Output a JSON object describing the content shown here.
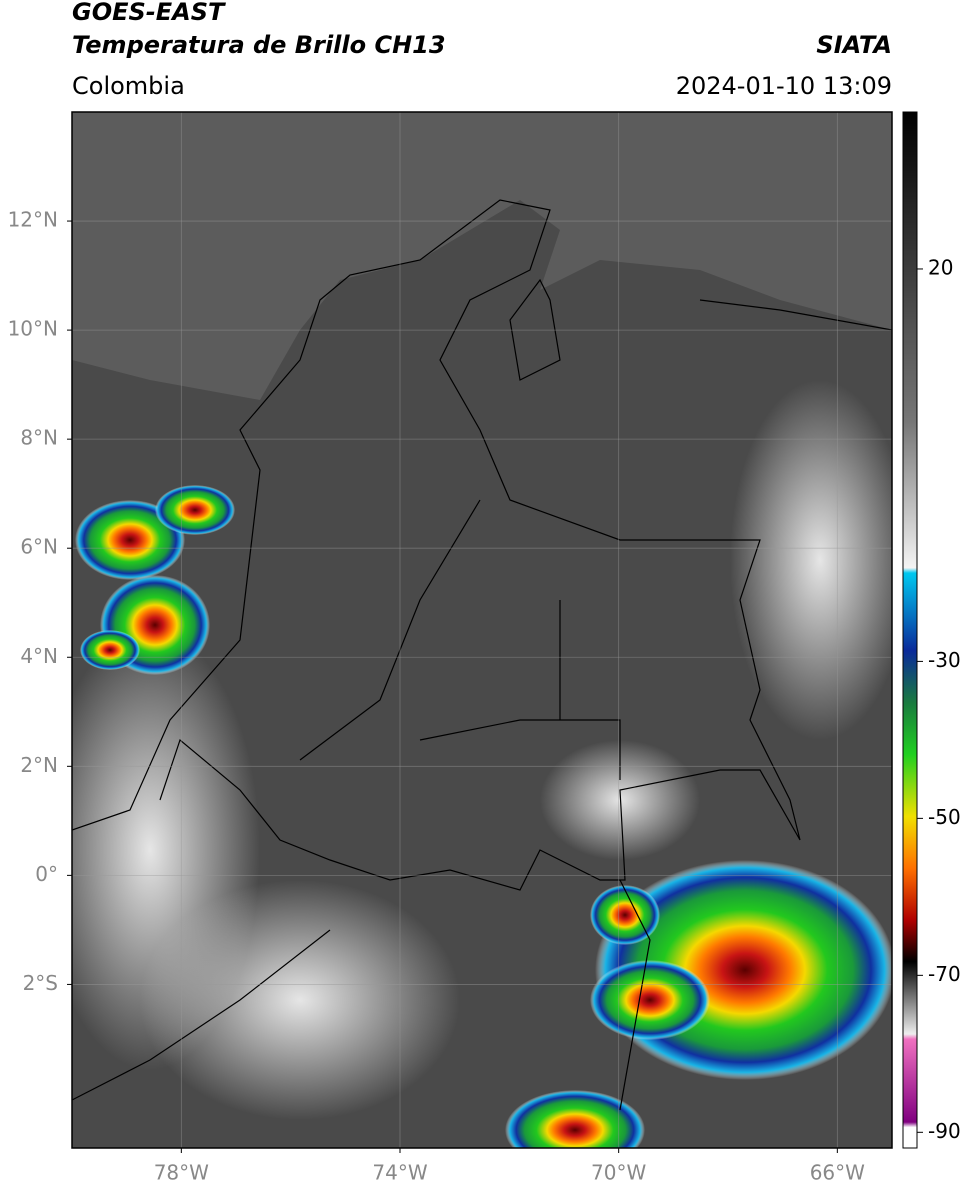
{
  "header": {
    "title": "GOES-EAST",
    "subtitle": "Temperatura de Brillo CH13",
    "source": "SIATA",
    "region": "Colombia",
    "timestamp": "2024-01-10 13:09"
  },
  "map": {
    "lon_range": [
      -80,
      -65
    ],
    "lat_range": [
      -5,
      14
    ],
    "lat_ticks": [
      {
        "value": 12,
        "label": "12°N"
      },
      {
        "value": 10,
        "label": "10°N"
      },
      {
        "value": 8,
        "label": "8°N"
      },
      {
        "value": 6,
        "label": "6°N"
      },
      {
        "value": 4,
        "label": "4°N"
      },
      {
        "value": 2,
        "label": "2°N"
      },
      {
        "value": 0,
        "label": "0°"
      },
      {
        "value": -2,
        "label": "2°S"
      }
    ],
    "lon_ticks": [
      {
        "value": -78,
        "label": "78°W"
      },
      {
        "value": -74,
        "label": "74°W"
      },
      {
        "value": -70,
        "label": "70°W"
      },
      {
        "value": -66,
        "label": "66°W"
      }
    ]
  },
  "colorbar": {
    "range": [
      -92,
      40
    ],
    "ticks": [
      20,
      -30,
      -50,
      -70,
      -90
    ]
  }
}
